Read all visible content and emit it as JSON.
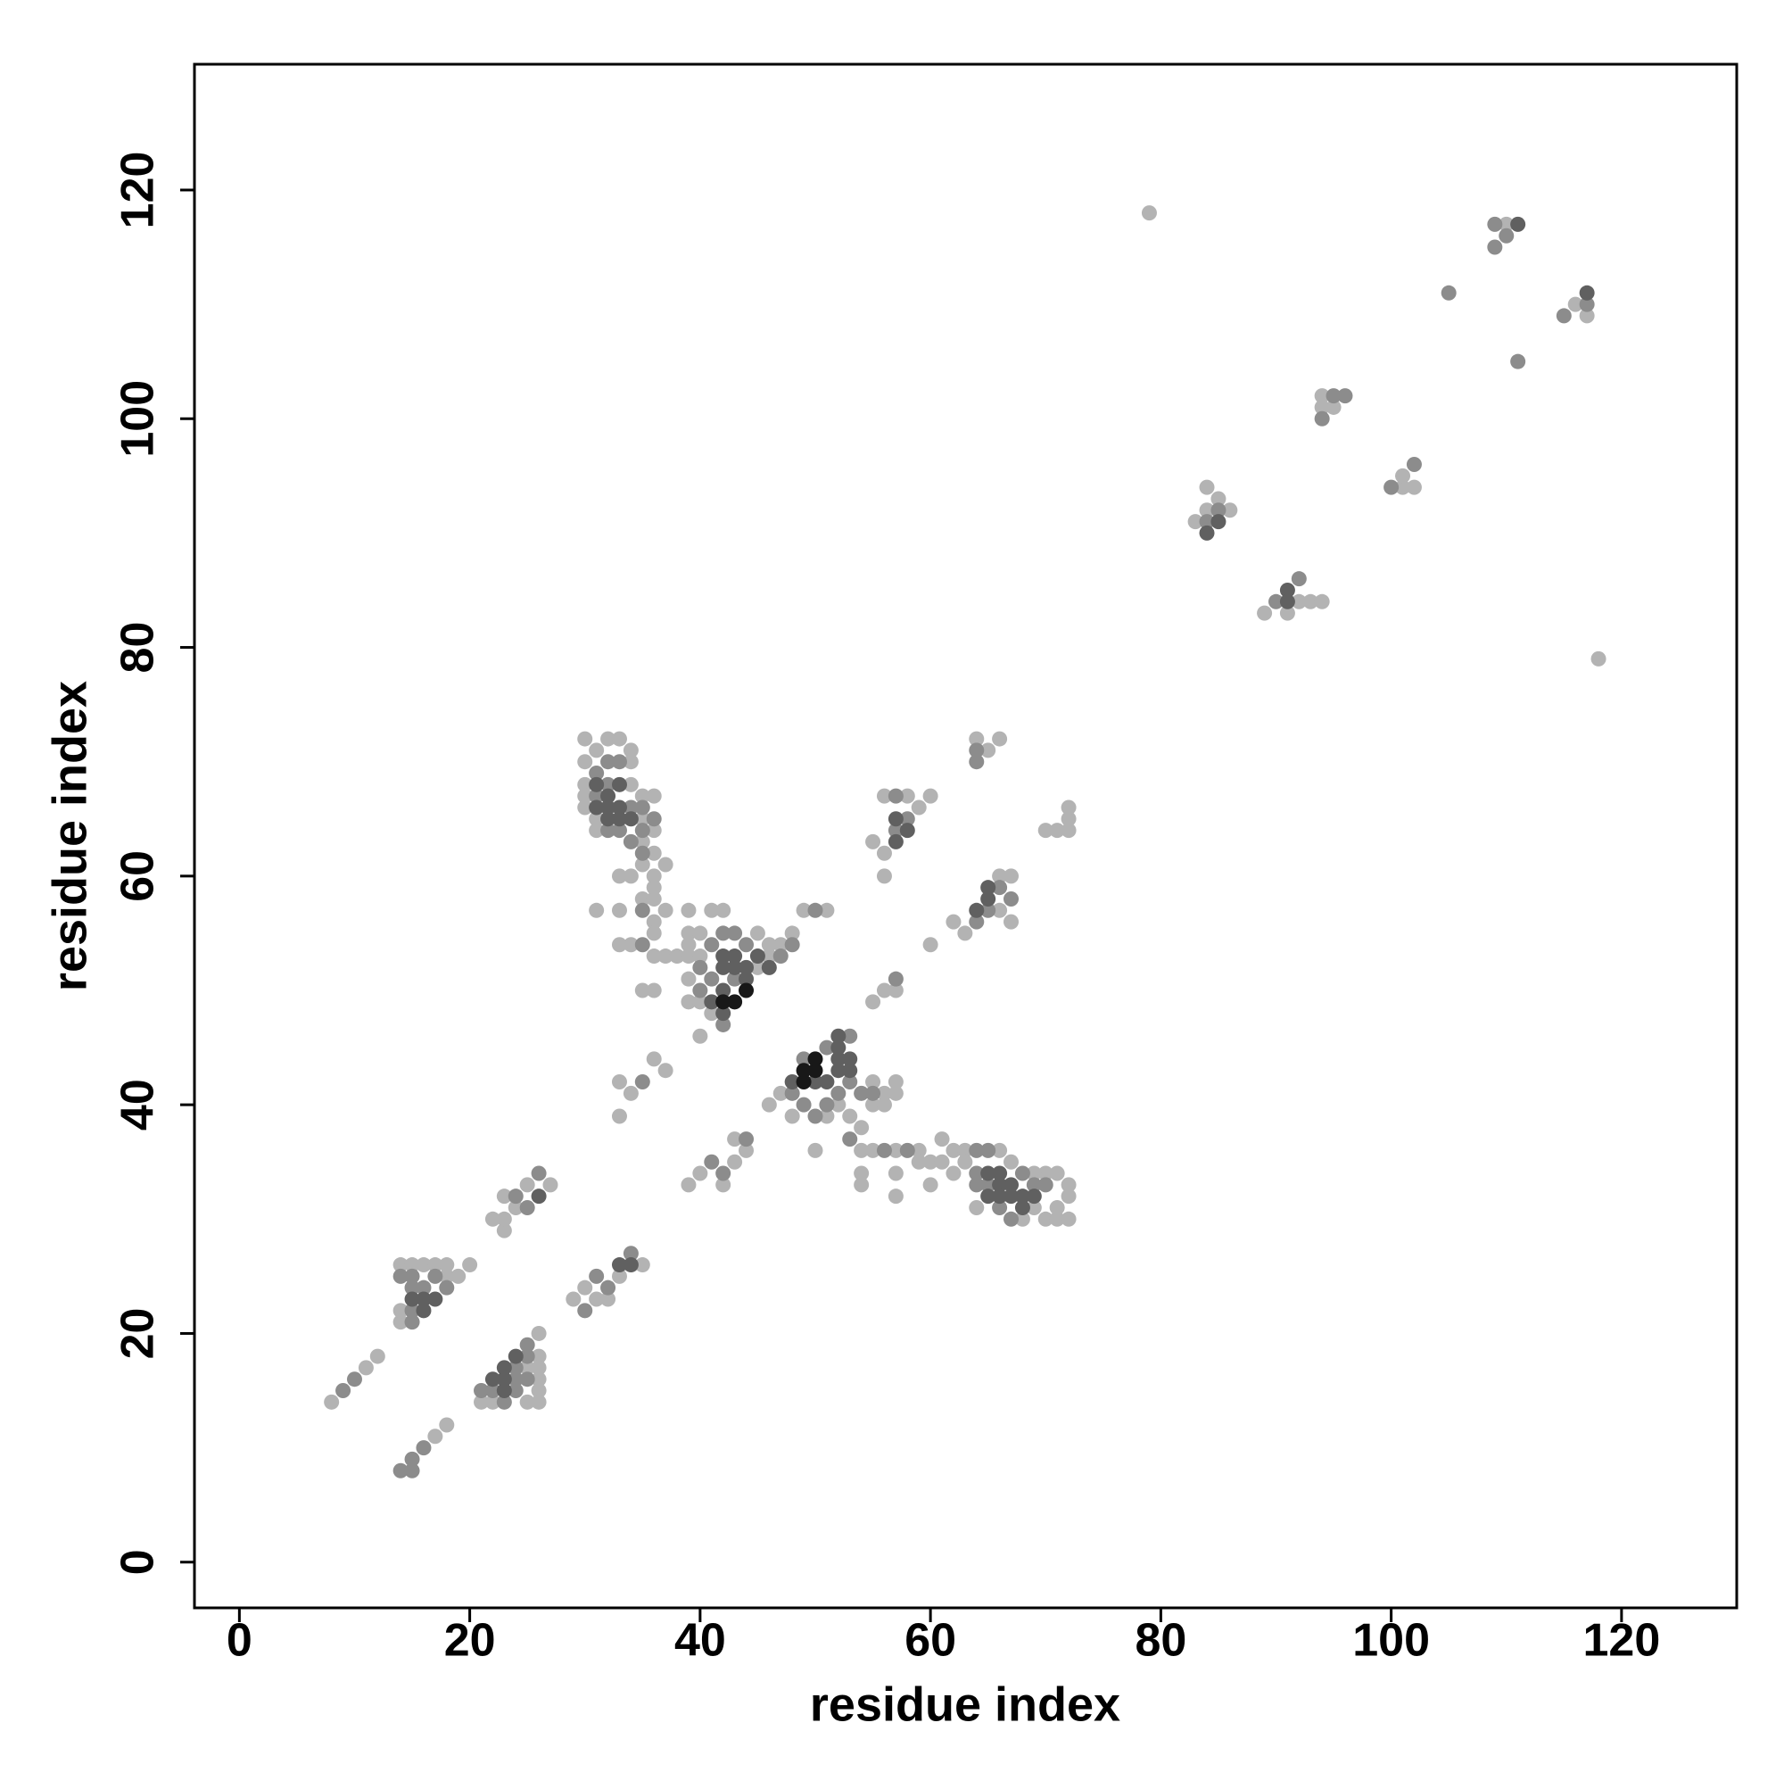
{
  "chart_data": {
    "type": "scatter",
    "xlabel": "residue index",
    "ylabel": "residue index",
    "xlim": [
      -3.9,
      130
    ],
    "ylim": [
      -4,
      131
    ],
    "xticks": [
      0,
      20,
      40,
      60,
      80,
      100,
      120
    ],
    "yticks": [
      0,
      20,
      40,
      60,
      80,
      100,
      120
    ],
    "series": [
      {
        "color": "#b3b3b3",
        "x": [
          8,
          11,
          12,
          17,
          18,
          14,
          15,
          16,
          17,
          18,
          20,
          19,
          14,
          14,
          18,
          26,
          26,
          26,
          26,
          26,
          26,
          25,
          22,
          21,
          25,
          22,
          23,
          23,
          23,
          24,
          25,
          27,
          29,
          30,
          31,
          32,
          33,
          35,
          30,
          32,
          33,
          34,
          30,
          31,
          30,
          30,
          30,
          31,
          31,
          34,
          34,
          35,
          36,
          35,
          36,
          35,
          36,
          35,
          36,
          37,
          33,
          34,
          36,
          35,
          36,
          31,
          33,
          36,
          37,
          33,
          34,
          36,
          36,
          37,
          38,
          35,
          39,
          41,
          42,
          39,
          40,
          39,
          39,
          40,
          39,
          39,
          40,
          40,
          45,
          46,
          47,
          48,
          49,
          51,
          46,
          45,
          41,
          33,
          33,
          36,
          37,
          34,
          39,
          40,
          42,
          43,
          44,
          43,
          46,
          47,
          50,
          48,
          51,
          52,
          53,
          54,
          55,
          56,
          56,
          57,
          57,
          55,
          54,
          54,
          54,
          55,
          57,
          57,
          57,
          59,
          59,
          60,
          61,
          61,
          62,
          62,
          60,
          63,
          63,
          64,
          66,
          67,
          68,
          69,
          70,
          71,
          72,
          72,
          72,
          71,
          70,
          69,
          71,
          36,
          56,
          57,
          55,
          56,
          55,
          56,
          58,
          59,
          60,
          56,
          60,
          62,
          63,
          66,
          67,
          67,
          66,
          64,
          65,
          66,
          71,
          72,
          72,
          72,
          70,
          79,
          118,
          83,
          84,
          85,
          86,
          84,
          89,
          91,
          92,
          93,
          94,
          94,
          95,
          94,
          101,
          102,
          101,
          110,
          116,
          117
        ],
        "values": [
          14,
          17,
          18,
          11,
          12,
          26,
          26,
          26,
          26,
          26,
          26,
          25,
          21,
          22,
          25,
          20,
          18,
          17,
          16,
          15,
          14,
          14,
          14,
          14,
          17,
          30,
          29,
          30,
          32,
          31,
          33,
          33,
          23,
          24,
          23,
          23,
          25,
          26,
          72,
          72,
          72,
          71,
          70,
          71,
          68,
          67,
          66,
          65,
          64,
          70,
          68,
          67,
          67,
          65,
          64,
          63,
          62,
          61,
          60,
          61,
          60,
          60,
          59,
          58,
          58,
          57,
          57,
          56,
          57,
          54,
          54,
          55,
          53,
          53,
          53,
          50,
          57,
          57,
          57,
          55,
          55,
          54,
          53,
          53,
          51,
          49,
          49,
          46,
          55,
          54,
          54,
          55,
          57,
          57,
          53,
          52,
          48,
          39,
          42,
          44,
          43,
          41,
          33,
          34,
          33,
          37,
          36,
          35,
          40,
          41,
          36,
          39,
          39,
          40,
          39,
          38,
          40,
          40,
          41,
          42,
          41,
          42,
          36,
          34,
          33,
          36,
          36,
          34,
          32,
          36,
          35,
          35,
          37,
          35,
          36,
          34,
          33,
          36,
          35,
          31,
          36,
          35,
          30,
          31,
          30,
          30,
          30,
          32,
          33,
          34,
          34,
          34,
          31,
          50,
          50,
          50,
          49,
          62,
          63,
          67,
          67,
          66,
          67,
          60,
          54,
          56,
          55,
          57,
          56,
          60,
          60,
          72,
          71,
          72,
          64,
          64,
          65,
          66,
          64,
          118,
          79,
          91,
          94,
          93,
          92,
          92,
          83,
          83,
          84,
          84,
          84,
          102,
          101,
          101,
          94,
          94,
          95,
          117,
          110,
          109
        ]
      },
      {
        "color": "#8c8c8c",
        "x": [
          9,
          10,
          14,
          15,
          15,
          16,
          15,
          16,
          17,
          15,
          15,
          15,
          18,
          14,
          21,
          22,
          24,
          23,
          24,
          25,
          24,
          25,
          25,
          25,
          24,
          26,
          30,
          31,
          34,
          32,
          31,
          32,
          33,
          32,
          31,
          34,
          33,
          32,
          34,
          35,
          35,
          36,
          35,
          35,
          35,
          41,
          42,
          43,
          44,
          40,
          41,
          40,
          42,
          47,
          48,
          43,
          35,
          41,
          42,
          44,
          48,
          49,
          50,
          51,
          52,
          53,
          54,
          55,
          51,
          53,
          49,
          53,
          56,
          58,
          64,
          65,
          65,
          64,
          66,
          67,
          69,
          70,
          68,
          64,
          50,
          57,
          57,
          58,
          57,
          64,
          64,
          65,
          66,
          67,
          64,
          84,
          85,
          90,
          92,
          94,
          95,
          96,
          100,
          102,
          105,
          111,
          109,
          110,
          109,
          115,
          117
        ],
        "values": [
          15,
          16,
          8,
          8,
          9,
          10,
          25,
          24,
          25,
          24,
          22,
          21,
          24,
          25,
          15,
          15,
          15,
          14,
          17,
          18,
          16,
          16,
          19,
          31,
          32,
          34,
          22,
          25,
          27,
          24,
          69,
          70,
          70,
          68,
          67,
          66,
          64,
          64,
          63,
          66,
          64,
          65,
          62,
          57,
          54,
          54,
          55,
          55,
          54,
          52,
          51,
          50,
          47,
          53,
          54,
          51,
          42,
          35,
          34,
          37,
          41,
          40,
          39,
          40,
          41,
          42,
          41,
          41,
          45,
          46,
          44,
          37,
          36,
          36,
          36,
          36,
          33,
          34,
          31,
          30,
          33,
          33,
          34,
          33,
          57,
          51,
          67,
          65,
          64,
          71,
          70,
          57,
          59,
          58,
          56,
          91,
          92,
          84,
          86,
          100,
          102,
          102,
          94,
          96,
          111,
          105,
          115,
          116,
          117,
          109,
          110
        ]
      },
      {
        "color": "#606060",
        "x": [
          16,
          17,
          15,
          16,
          22,
          23,
          23,
          24,
          23,
          26,
          33,
          31,
          32,
          32,
          33,
          33,
          34,
          32,
          31,
          33,
          42,
          43,
          42,
          43,
          44,
          45,
          46,
          42,
          41,
          42,
          44,
          52,
          53,
          52,
          53,
          52,
          52,
          51,
          50,
          48,
          65,
          66,
          66,
          67,
          67,
          68,
          66,
          65,
          69,
          68,
          57,
          58,
          57,
          65,
          65,
          64,
          85,
          91,
          91,
          84,
          111,
          117,
          34
        ],
        "values": [
          22,
          23,
          23,
          23,
          16,
          16,
          17,
          18,
          15,
          32,
          26,
          66,
          66,
          67,
          65,
          66,
          65,
          65,
          68,
          68,
          53,
          53,
          52,
          52,
          52,
          53,
          52,
          50,
          49,
          48,
          51,
          43,
          43,
          44,
          44,
          45,
          46,
          42,
          42,
          42,
          34,
          34,
          33,
          33,
          32,
          32,
          32,
          32,
          32,
          31,
          65,
          64,
          63,
          58,
          59,
          57,
          91,
          85,
          84,
          90,
          117,
          111,
          26
        ]
      },
      {
        "color": "#181818",
        "x": [
          43,
          44,
          42,
          49,
          50,
          49,
          50
        ],
        "values": [
          49,
          50,
          49,
          43,
          43,
          42,
          44
        ]
      }
    ]
  }
}
